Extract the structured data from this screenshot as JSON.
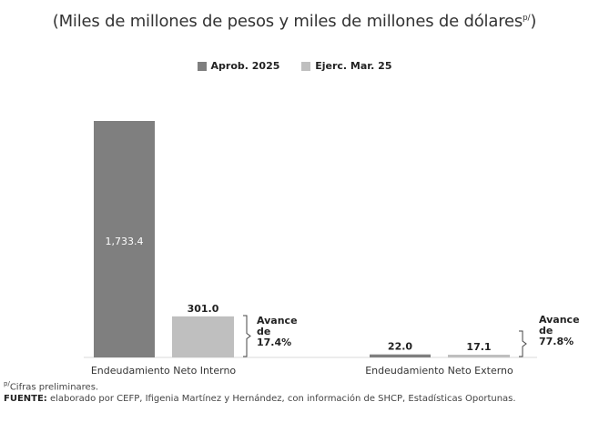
{
  "chart_data": {
    "type": "bar",
    "title": "(Miles de millones de pesos y miles de millones de dólares",
    "title_sup": "p/",
    "title_end": ")",
    "categories": [
      "Endeudamiento Neto Interno",
      "Endeudamiento Neto Externo"
    ],
    "series": [
      {
        "name": "Aprob. 2025",
        "values": [
          1733.4,
          22.0
        ],
        "labels": [
          "1,733.4",
          "22.0"
        ],
        "color": "#7f7f7f"
      },
      {
        "name": "Ejerc. Mar. 25",
        "values": [
          301.0,
          17.1
        ],
        "labels": [
          "301.0",
          "17.1"
        ],
        "color": "#bfbfbf"
      }
    ],
    "annotations": [
      {
        "category": "Endeudamiento Neto Interno",
        "lines": [
          "Avance",
          "de",
          "17.4%"
        ]
      },
      {
        "category": "Endeudamiento Neto Externo",
        "lines": [
          "Avance",
          "de",
          "77.8%"
        ]
      }
    ],
    "ylim": [
      0,
      1733.4
    ],
    "grid": false,
    "legend": "top-center"
  },
  "notes": {
    "prelim_sup": "p/",
    "prelim": "Cifras preliminares.",
    "source_label": "FUENTE:",
    "source_text": " elaborado por CEFP, Ifigenia Martínez y Hernández, con información de SHCP, Estadísticas Oportunas."
  }
}
